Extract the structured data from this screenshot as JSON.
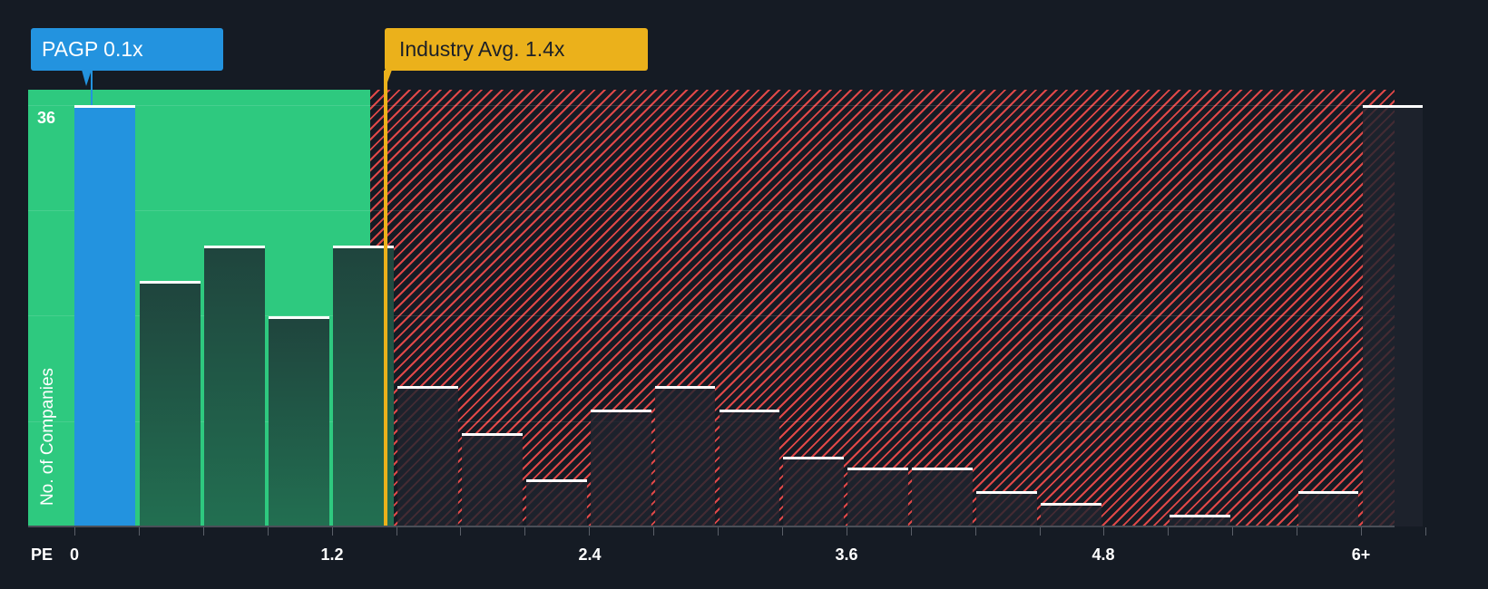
{
  "callouts": {
    "company": "PAGP 0.1x",
    "industry": "Industry Avg. 1.4x"
  },
  "axis": {
    "x_prefix": "PE",
    "y_max_label": "36",
    "y_title": "No. of Companies",
    "x_ticks": [
      "0",
      "1.2",
      "2.4",
      "3.6",
      "4.8",
      "6+"
    ]
  },
  "colors": {
    "background": "#151b24",
    "undervalued_zone": "#2ec97f",
    "overvalued_hatch": "#e04848",
    "company_bar": "#2393df",
    "industry_marker": "#ebb11b",
    "bar_cap": "#ffffff"
  },
  "chart_data": {
    "type": "bar",
    "title": "",
    "xlabel": "PE",
    "ylabel": "No. of Companies",
    "ylim": [
      0,
      36
    ],
    "x_range": [
      0,
      6.3
    ],
    "bin_width": 0.3,
    "categories": [
      "0-0.3",
      "0.3-0.6",
      "0.6-0.9",
      "0.9-1.2",
      "1.2-1.5",
      "1.5-1.8",
      "1.8-2.1",
      "2.1-2.4",
      "2.4-2.7",
      "2.7-3.0",
      "3.0-3.3",
      "3.3-3.6",
      "3.6-3.9",
      "3.9-4.2",
      "4.2-4.5",
      "4.5-4.8",
      "4.8-5.1",
      "5.1-5.4",
      "5.4-5.7",
      "5.7-6.0",
      "6+"
    ],
    "values": [
      36,
      21,
      24,
      18,
      24,
      12,
      8,
      4,
      10,
      12,
      10,
      6,
      5,
      5,
      3,
      2,
      0,
      1,
      0,
      3,
      36
    ],
    "highlight": {
      "label": "PAGP",
      "value": 0.1,
      "bin_index": 0
    },
    "reference_line": {
      "label": "Industry Avg.",
      "value": 1.4
    },
    "zones": [
      {
        "name": "undervalued",
        "from": 0,
        "to": 1.38,
        "color": "#2ec97f"
      },
      {
        "name": "overvalued",
        "from": 1.38,
        "to": 6.3,
        "color": "#e04848",
        "pattern": "diagonal-hatch"
      }
    ],
    "gridlines_y": [
      0,
      9,
      18,
      27,
      36
    ],
    "x_tick_labels": [
      "0",
      "1.2",
      "2.4",
      "3.6",
      "4.8",
      "6+"
    ]
  }
}
